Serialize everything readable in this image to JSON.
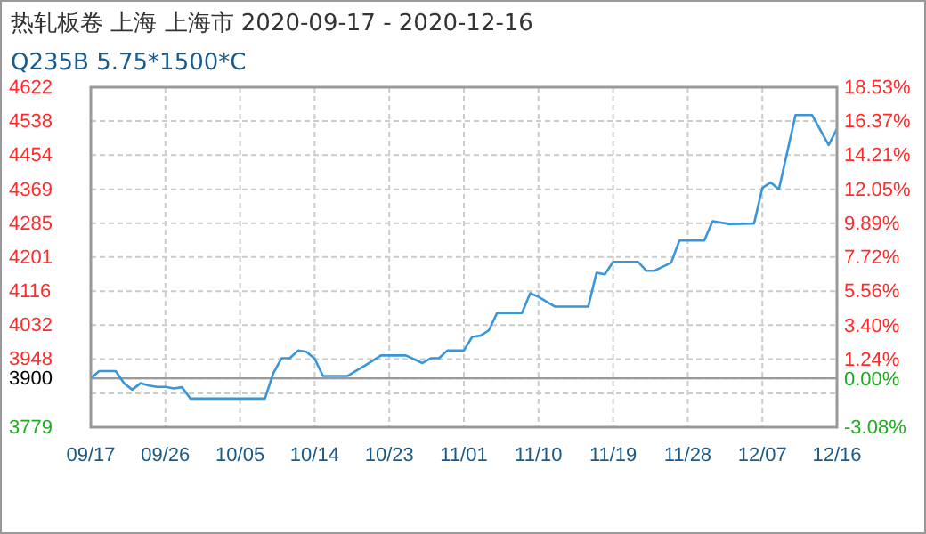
{
  "chart_data": {
    "type": "line",
    "title": "热轧板卷 上海 上海市 2020-09-17 - 2020-12-16",
    "subtitle": "Q235B 5.75*1500*C",
    "x": [
      "2020-09-17",
      "2020-09-18",
      "2020-09-20",
      "2020-09-21",
      "2020-09-22",
      "2020-09-23",
      "2020-09-24",
      "2020-09-25",
      "2020-09-26",
      "2020-09-27",
      "2020-09-28",
      "2020-09-29",
      "2020-10-08",
      "2020-10-09",
      "2020-10-10",
      "2020-10-11",
      "2020-10-12",
      "2020-10-13",
      "2020-10-14",
      "2020-10-15",
      "2020-10-18",
      "2020-10-19",
      "2020-10-20",
      "2020-10-22",
      "2020-10-25",
      "2020-10-27",
      "2020-10-28",
      "2020-10-29",
      "2020-10-30",
      "2020-11-01",
      "2020-11-02",
      "2020-11-03",
      "2020-11-04",
      "2020-11-05",
      "2020-11-08",
      "2020-11-09",
      "2020-11-10",
      "2020-11-12",
      "2020-11-16",
      "2020-11-17",
      "2020-11-18",
      "2020-11-19",
      "2020-11-22",
      "2020-11-23",
      "2020-11-24",
      "2020-11-26",
      "2020-11-27",
      "2020-11-30",
      "2020-12-01",
      "2020-12-03",
      "2020-12-06",
      "2020-12-07",
      "2020-12-08",
      "2020-12-09",
      "2020-12-11",
      "2020-12-13",
      "2020-12-15",
      "2020-12-16"
    ],
    "series": [
      {
        "color": "#3a96d8",
        "values": [
          3900,
          3918,
          3918,
          3888,
          3872,
          3888,
          3882,
          3879,
          3879,
          3875,
          3878,
          3850,
          3850,
          3912,
          3950,
          3950,
          3969,
          3966,
          3949,
          3906,
          3906,
          3919,
          3931,
          3957,
          3957,
          3938,
          3950,
          3950,
          3969,
          3969,
          4003,
          4006,
          4019,
          4062,
          4062,
          4111,
          4102,
          4078,
          4078,
          4162,
          4158,
          4189,
          4189,
          4167,
          4167,
          4187,
          4242,
          4242,
          4290,
          4283,
          4284,
          4372,
          4386,
          4369,
          4553,
          4553,
          4479,
          4519
        ]
      }
    ],
    "xlim": [
      "2020-09-17",
      "2020-12-16"
    ],
    "xticks": [
      {
        "value": "2020-09-17",
        "label": "09/17"
      },
      {
        "value": "2020-09-26",
        "label": "09/26"
      },
      {
        "value": "2020-10-05",
        "label": "10/05"
      },
      {
        "value": "2020-10-14",
        "label": "10/14"
      },
      {
        "value": "2020-10-23",
        "label": "10/23"
      },
      {
        "value": "2020-11-01",
        "label": "11/01"
      },
      {
        "value": "2020-11-10",
        "label": "11/10"
      },
      {
        "value": "2020-11-19",
        "label": "11/19"
      },
      {
        "value": "2020-11-28",
        "label": "11/28"
      },
      {
        "value": "2020-12-07",
        "label": "12/07"
      },
      {
        "value": "2020-12-16",
        "label": "12/16"
      }
    ],
    "ylim": [
      3779,
      4622
    ],
    "yticks": [
      3779,
      {
        "value": 3863,
        "label": null
      },
      3900,
      3948,
      4032,
      4116,
      4201,
      4285,
      4369,
      4454,
      4538,
      4622
    ],
    "y2lim": [
      -3.08,
      18.53
    ],
    "y2ticks": [
      {
        "value": -3.08,
        "label": "-3.08%"
      },
      {
        "value": 0,
        "label": "0.00%"
      },
      {
        "value": 1.24,
        "label": "1.24%"
      },
      {
        "value": 3.4,
        "label": "3.40%"
      },
      {
        "value": 5.56,
        "label": "5.56%"
      },
      {
        "value": 7.72,
        "label": "7.72%"
      },
      {
        "value": 9.89,
        "label": "9.89%"
      },
      {
        "value": 12.05,
        "label": "12.05%"
      },
      {
        "value": 14.21,
        "label": "14.21%"
      },
      {
        "value": 16.37,
        "label": "16.37%"
      },
      {
        "value": 18.53,
        "label": "18.53%"
      }
    ],
    "ref_lines": [
      {
        "axis": "y",
        "value": 3900,
        "color": "#999999"
      }
    ],
    "grid": true,
    "marker": "none",
    "line_style": "solid"
  }
}
